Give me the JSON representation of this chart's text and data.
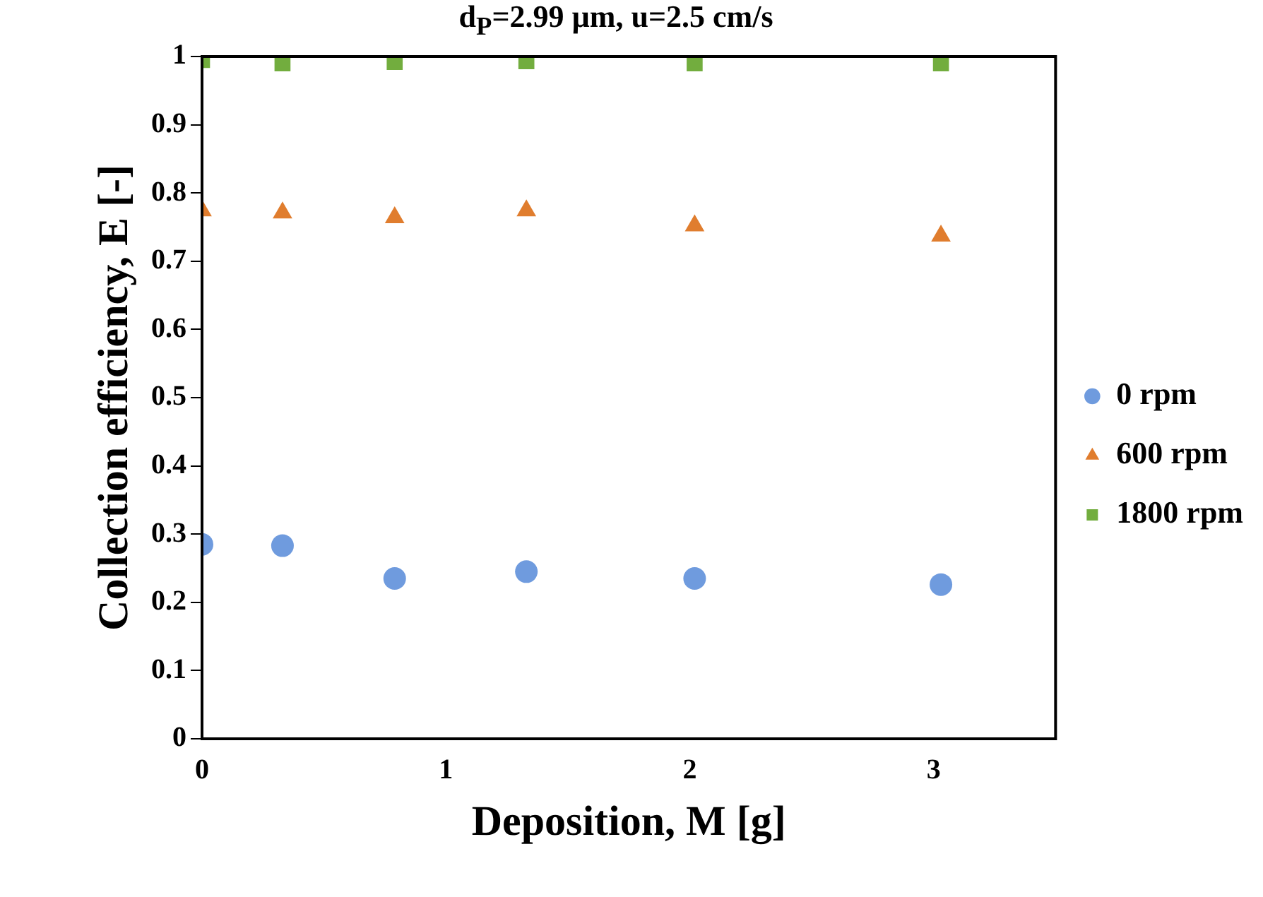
{
  "chart_data": {
    "type": "scatter",
    "title": "d$_{P}$=2.99 µm, u=2.5 cm/s",
    "xlabel": "Deposition, M [g]",
    "ylabel": "Collection efficiency, E [-]",
    "x": [
      0,
      0.33,
      0.79,
      1.33,
      2.02,
      3.03
    ],
    "series": [
      {
        "name": "0 rpm",
        "color": "#6f9bde",
        "marker": "circle",
        "values": [
          0.285,
          0.283,
          0.235,
          0.245,
          0.235,
          0.226
        ]
      },
      {
        "name": "600 rpm",
        "color": "#e07d2e",
        "marker": "triangle",
        "values": [
          0.774,
          0.771,
          0.764,
          0.774,
          0.752,
          0.737
        ]
      },
      {
        "name": "1800 rpm",
        "color": "#72ad3e",
        "marker": "square",
        "values": [
          0.995,
          0.99,
          0.992,
          0.993,
          0.99,
          0.99
        ]
      }
    ],
    "xlim": [
      0,
      3.5
    ],
    "xticks": [
      0,
      1,
      2,
      3
    ],
    "ylim": [
      0,
      1
    ],
    "yticks": [
      0,
      0.1,
      0.2,
      0.3,
      0.4,
      0.5,
      0.6,
      0.7,
      0.8,
      0.9,
      1
    ],
    "grid": false,
    "legend": "right"
  }
}
